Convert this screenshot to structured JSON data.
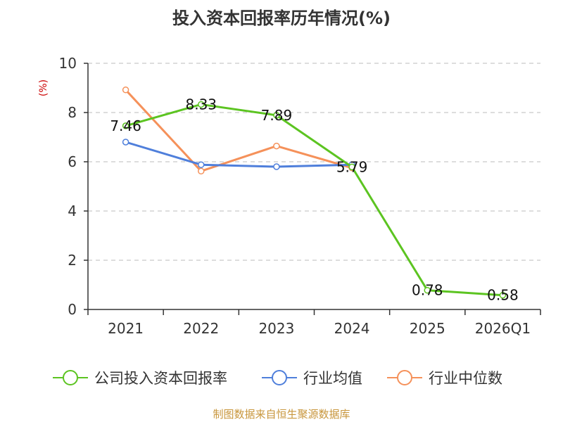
{
  "chart_data": {
    "type": "line",
    "title": "投入资本回报率历年情况(%)",
    "ylabel": "(%)",
    "categories": [
      "2021",
      "2022",
      "2023",
      "2024",
      "2025",
      "2026Q1"
    ],
    "ylim": [
      0,
      10
    ],
    "yticks": [
      "0",
      "2",
      "4",
      "6",
      "8",
      "10"
    ],
    "grid": true,
    "legend_position": "bottom",
    "series": [
      {
        "name": "公司投入资本回报率",
        "color": "#5cc421",
        "values": [
          7.46,
          8.33,
          7.89,
          5.79,
          0.78,
          0.58
        ],
        "labels": [
          "7.46",
          "8.33",
          "7.89",
          "5.79",
          "0.78",
          "0.58"
        ]
      },
      {
        "name": "行业均值",
        "color": "#4f7fdb",
        "values": [
          6.8,
          5.88,
          5.8,
          5.88,
          null,
          null
        ]
      },
      {
        "name": "行业中位数",
        "color": "#f5915a",
        "values": [
          8.92,
          5.62,
          6.64,
          5.75,
          null,
          null
        ]
      }
    ]
  },
  "source": {
    "text": "制图数据来自恒生聚源数据库",
    "color": "#c8963c"
  },
  "colors": {
    "axis": "#333333",
    "grid": "#bbbbbb",
    "unit": "#cc0000"
  }
}
